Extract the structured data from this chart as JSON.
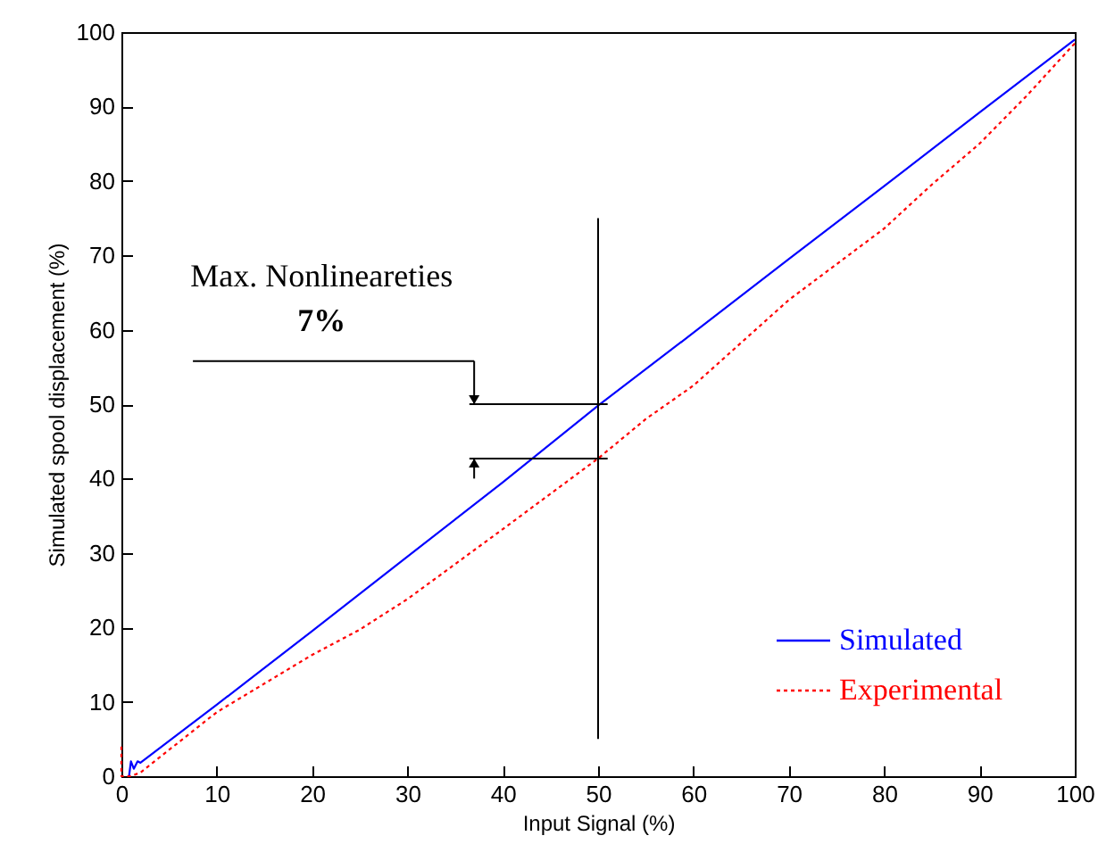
{
  "chart_data": {
    "type": "line",
    "xlabel": "Input Signal (%)",
    "ylabel": "Simulated spool displacement (%)",
    "xlim": [
      0,
      100
    ],
    "xticks": [
      0,
      10,
      20,
      30,
      40,
      50,
      60,
      70,
      80,
      90,
      100
    ],
    "ylim": [
      0,
      100
    ],
    "yticks": [
      0,
      10,
      20,
      30,
      40,
      50,
      60,
      70,
      80,
      90,
      100
    ],
    "series": [
      {
        "name": "Simulated",
        "color": "#0000ff",
        "line_style": "solid",
        "x": [
          0.8,
          1,
          1.3,
          1.7,
          2,
          10,
          20,
          30,
          40,
          50,
          60,
          70,
          80,
          90,
          100
        ],
        "values": [
          0,
          2,
          1,
          2,
          1.8,
          9.6,
          19.5,
          29.5,
          39.5,
          49.8,
          59.6,
          69.5,
          79.3,
          89.2,
          99
        ]
      },
      {
        "name": "Experimental",
        "color": "#ff0000",
        "line_style": "dotted",
        "x": [
          0,
          0,
          1,
          2,
          10,
          20,
          25,
          30,
          40,
          50,
          55,
          60,
          70,
          80,
          85,
          90,
          95,
          100
        ],
        "values": [
          4,
          0,
          0,
          0.5,
          8.6,
          16.3,
          19.7,
          23.8,
          33.2,
          42.7,
          48,
          52.5,
          64,
          73.6,
          79.5,
          85,
          91.5,
          98.5
        ]
      }
    ],
    "ref_lines": [
      {
        "axis": "x",
        "value": 50,
        "color": "#000000"
      }
    ],
    "annotations": [
      "Max. Nonlineareties",
      "7%"
    ],
    "legend": "bottom right",
    "grid": false
  }
}
